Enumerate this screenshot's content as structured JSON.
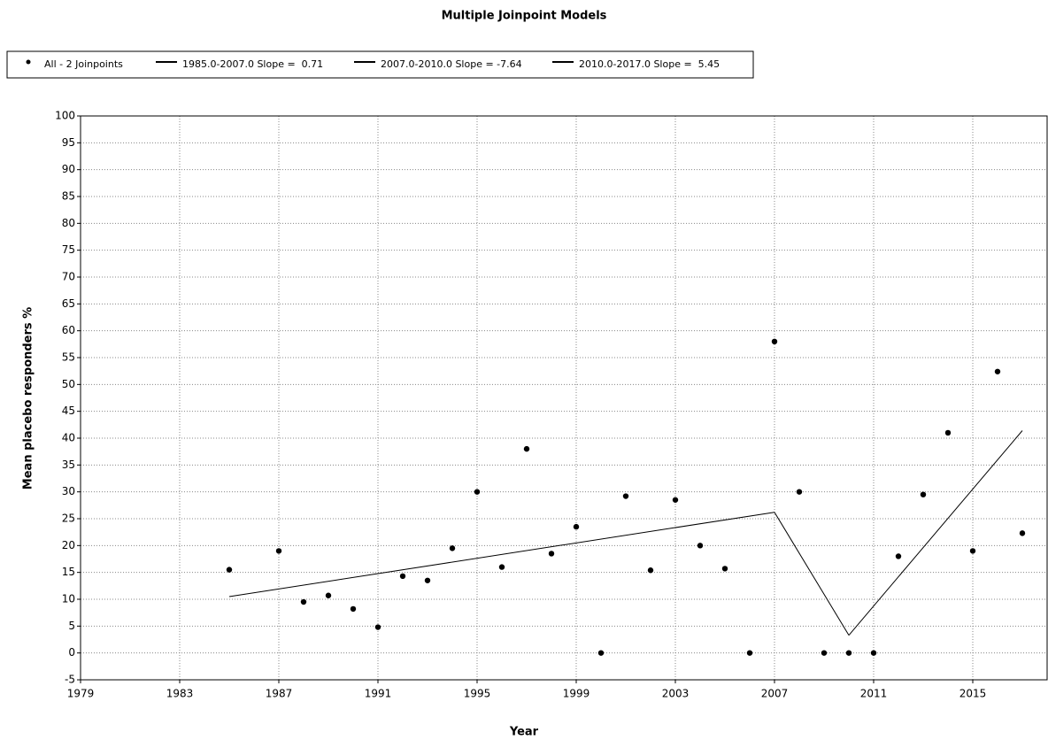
{
  "chart_data": {
    "type": "scatter",
    "title": "Multiple Joinpoint Models",
    "xlabel": "Year",
    "ylabel": "Mean placebo responders %",
    "xlim": [
      1979,
      2018
    ],
    "ylim": [
      -5,
      100
    ],
    "xticks": [
      1979,
      1983,
      1987,
      1991,
      1995,
      1999,
      2003,
      2007,
      2011,
      2015
    ],
    "yticks": [
      -5,
      0,
      5,
      10,
      15,
      20,
      25,
      30,
      35,
      40,
      45,
      50,
      55,
      60,
      65,
      70,
      75,
      80,
      85,
      90,
      95,
      100
    ],
    "grid": true,
    "legend": "top",
    "series": [
      {
        "name": "All - 2 Joinpoints",
        "type": "scatter",
        "color": "#000000",
        "x": [
          1985,
          1987,
          1988,
          1989,
          1990,
          1991,
          1992,
          1993,
          1994,
          1995,
          1996,
          1997,
          1998,
          1999,
          2000,
          2001,
          2002,
          2003,
          2004,
          2005,
          2006,
          2007,
          2008,
          2009,
          2010,
          2011,
          2012,
          2013,
          2014,
          2015,
          2016,
          2017
        ],
        "values": [
          15.5,
          19,
          9.5,
          10.7,
          8.2,
          4.8,
          14.3,
          13.5,
          19.5,
          30,
          16,
          38,
          18.5,
          23.5,
          0,
          29.2,
          15.4,
          28.5,
          20,
          15.7,
          0,
          58,
          30,
          0,
          0,
          0,
          18,
          29.5,
          41,
          19,
          52.4,
          22.3
        ]
      },
      {
        "name": "1985.0-2007.0 Slope =  0.71",
        "type": "line",
        "color": "#000000",
        "x": [
          1985,
          2007
        ],
        "values": [
          10.5,
          26.2
        ]
      },
      {
        "name": "2007.0-2010.0 Slope = -7.64",
        "type": "line",
        "color": "#000000",
        "x": [
          2007,
          2010
        ],
        "values": [
          26.2,
          3.3
        ]
      },
      {
        "name": "2010.0-2017.0 Slope =  5.45",
        "type": "line",
        "color": "#000000",
        "x": [
          2010,
          2017
        ],
        "values": [
          3.3,
          41.4
        ]
      }
    ]
  }
}
